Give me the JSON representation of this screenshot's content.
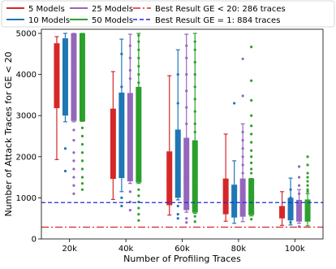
{
  "chart_data": {
    "type": "box",
    "xlabel": "Number of Profiling Traces",
    "ylabel": "Number of Attack Traces for GE < 20",
    "categories": [
      "20k",
      "40k",
      "60k",
      "80k",
      "100k"
    ],
    "yticks": [
      0,
      1000,
      2000,
      3000,
      4000,
      5000
    ],
    "ylim": [
      0,
      5100
    ],
    "grid": false,
    "legend_position": "top",
    "series": [
      {
        "name": "5 Models",
        "color": "#d62728",
        "boxes": [
          {
            "whislo": 1930,
            "q1": 3180,
            "med": 4000,
            "q3": 4760,
            "whishi": 4920,
            "fliers": []
          },
          {
            "whislo": 960,
            "q1": 1460,
            "med": 2300,
            "q3": 3170,
            "whishi": 4070,
            "fliers": []
          },
          {
            "whislo": 580,
            "q1": 820,
            "med": 1450,
            "q3": 2130,
            "whishi": 3970,
            "fliers": []
          },
          {
            "whislo": 430,
            "q1": 600,
            "med": 950,
            "q3": 1470,
            "whishi": 2550,
            "fliers": []
          },
          {
            "whislo": 330,
            "q1": 500,
            "med": 650,
            "q3": 800,
            "whishi": 1150,
            "fliers": []
          }
        ]
      },
      {
        "name": "10 Models",
        "color": "#1f77b4",
        "boxes": [
          {
            "whislo": 2850,
            "q1": 3000,
            "med": 4200,
            "q3": 4880,
            "whishi": 5000,
            "fliers": [
              2200,
              1650
            ]
          },
          {
            "whislo": 1150,
            "q1": 1480,
            "med": 2500,
            "q3": 3560,
            "whishi": 4860,
            "fliers": [
              4500,
              3700,
              1000,
              800
            ]
          },
          {
            "whislo": 950,
            "q1": 1000,
            "med": 1800,
            "q3": 2660,
            "whishi": 4600,
            "fliers": [
              4000,
              3300,
              800,
              600,
              500
            ]
          },
          {
            "whislo": 380,
            "q1": 520,
            "med": 900,
            "q3": 1320,
            "whishi": 1900,
            "fliers": [
              3300,
              1250,
              950,
              700,
              600
            ]
          },
          {
            "whislo": 340,
            "q1": 450,
            "med": 700,
            "q3": 1000,
            "whishi": 1480,
            "fliers": [
              1200,
              1000,
              400
            ]
          }
        ]
      },
      {
        "name": "25 Models",
        "color": "#9467bd",
        "boxes": [
          {
            "whislo": 2850,
            "q1": 2870,
            "med": 4200,
            "q3": 5000,
            "whishi": 5000,
            "fliers": [
              2650,
              2400,
              2100,
              1900,
              1700,
              1500,
              1300,
              1100
            ]
          },
          {
            "whislo": 1350,
            "q1": 1400,
            "med": 2500,
            "q3": 3550,
            "whishi": 4980,
            "fliers": [
              4700,
              4400,
              4100,
              3900,
              1150,
              900,
              700
            ]
          },
          {
            "whislo": 650,
            "q1": 700,
            "med": 1500,
            "q3": 2460,
            "whishi": 4980,
            "fliers": [
              4700,
              4400,
              4000,
              3600,
              3200,
              2800,
              500,
              400
            ]
          },
          {
            "whislo": 420,
            "q1": 540,
            "med": 950,
            "q3": 1470,
            "whishi": 2800,
            "fliers": [
              4380,
              3480,
              2600,
              2400,
              2200,
              2000,
              1800,
              1600
            ]
          },
          {
            "whislo": 380,
            "q1": 420,
            "med": 700,
            "q3": 950,
            "whishi": 1200,
            "fliers": [
              1760,
              1500,
              1300,
              1100,
              300
            ]
          }
        ]
      },
      {
        "name": "50 Models",
        "color": "#2ca02c",
        "boxes": [
          {
            "whislo": 2860,
            "q1": 2860,
            "med": 4150,
            "q3": 5000,
            "whishi": 5000,
            "fliers": [
              2700,
              2500,
              2300,
              2100,
              1900,
              1700,
              1500,
              1350,
              1200
            ]
          },
          {
            "whislo": 1350,
            "q1": 1370,
            "med": 2600,
            "q3": 3700,
            "whishi": 5000,
            "fliers": [
              4950,
              4800,
              4600,
              4400,
              4200,
              4000,
              3800,
              1200,
              1050,
              900,
              750,
              600,
              450
            ]
          },
          {
            "whislo": 620,
            "q1": 640,
            "med": 1500,
            "q3": 2400,
            "whishi": 5000,
            "fliers": [
              4800,
              4600,
              4300,
              4000,
              3700,
              3400,
              3100,
              2800,
              2600,
              550,
              420
            ]
          },
          {
            "whislo": 560,
            "q1": 580,
            "med": 1000,
            "q3": 1470,
            "whishi": 1470,
            "fliers": [
              4670,
              3850,
              3370,
              3000,
              2750,
              2550,
              2350,
              2150,
              2000,
              1850,
              1700,
              1600,
              480
            ]
          },
          {
            "whislo": 320,
            "q1": 420,
            "med": 700,
            "q3": 960,
            "whishi": 1100,
            "fliers": [
              2000,
              1800,
              1600,
              1500,
              1400,
              1300,
              1200,
              1150
            ]
          }
        ]
      }
    ],
    "reference_lines": [
      {
        "name": "Best Result GE < 20: 286 traces",
        "y": 286,
        "color": "#d62728",
        "style": "dashdot"
      },
      {
        "name": "Best Result GE = 1: 884 traces",
        "y": 884,
        "color": "#1f2bd6",
        "style": "dashed"
      }
    ]
  }
}
